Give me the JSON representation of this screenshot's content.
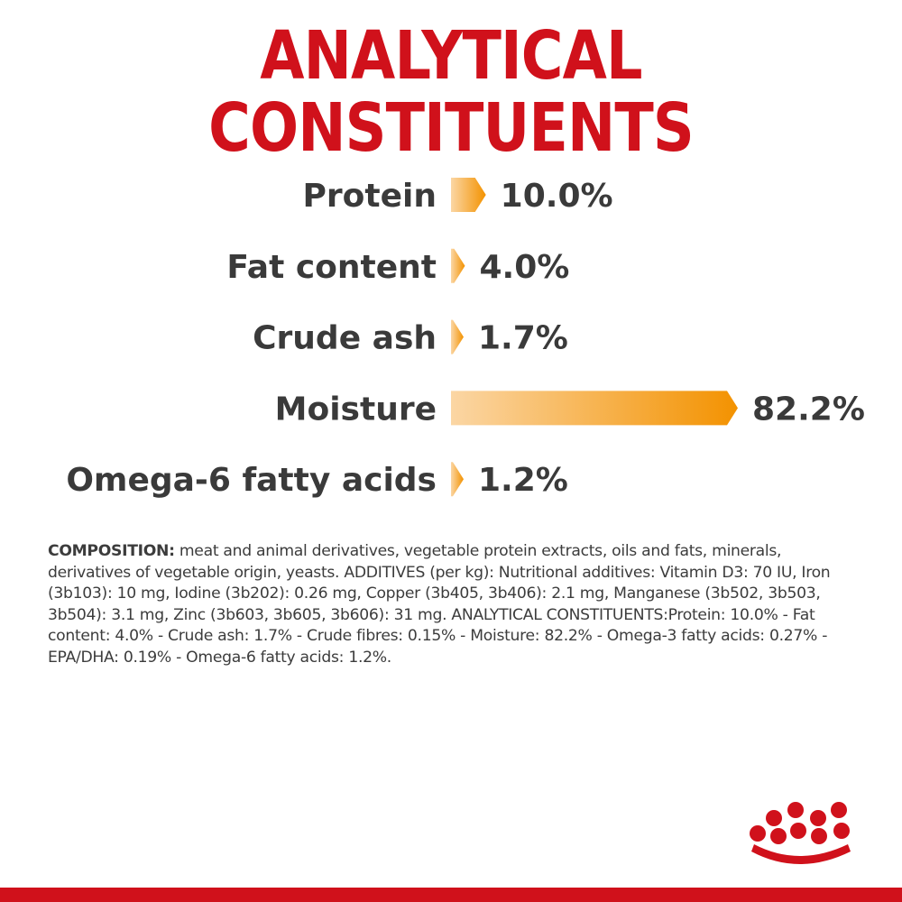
{
  "title": "ANALYTICAL CONSTITUENTS",
  "chart_data": {
    "type": "bar",
    "orientation": "horizontal",
    "categories": [
      "Protein",
      "Fat content",
      "Crude ash",
      "Moisture",
      "Omega-6 fatty acids"
    ],
    "values": [
      10.0,
      4.0,
      1.7,
      82.2,
      1.2
    ],
    "value_labels": [
      "10.0%",
      "4.0%",
      "1.7%",
      "82.2%",
      "1.2%"
    ],
    "xlim": [
      0,
      82.2
    ],
    "grid": false,
    "colors": {
      "bar_start": "#fbd6a4",
      "bar_end": "#f39200",
      "label": "#3a3a3a"
    }
  },
  "composition": {
    "heading": "COMPOSITION:",
    "text": " meat and animal derivatives, vegetable protein extracts, oils and fats, minerals, derivatives of vegetable origin, yeasts. ADDITIVES (per kg): Nutritional additives: Vitamin D3: 70 IU, Iron (3b103): 10 mg, Iodine (3b202): 0.26 mg, Copper (3b405, 3b406): 2.1 mg, Manganese (3b502, 3b503, 3b504): 3.1 mg, Zinc (3b603, 3b605, 3b606): 31 mg. ANALYTICAL CONSTITUENTS:Protein: 10.0% - Fat content: 4.0% - Crude ash: 1.7% - Crude fibres: 0.15% - Moisture: 82.2% - Omega-3 fatty acids: 0.27% - EPA/DHA: 0.19% - Omega-6 fatty acids: 1.2%."
  },
  "logo": {
    "icon": "crown-icon",
    "color": "#d0111b"
  }
}
